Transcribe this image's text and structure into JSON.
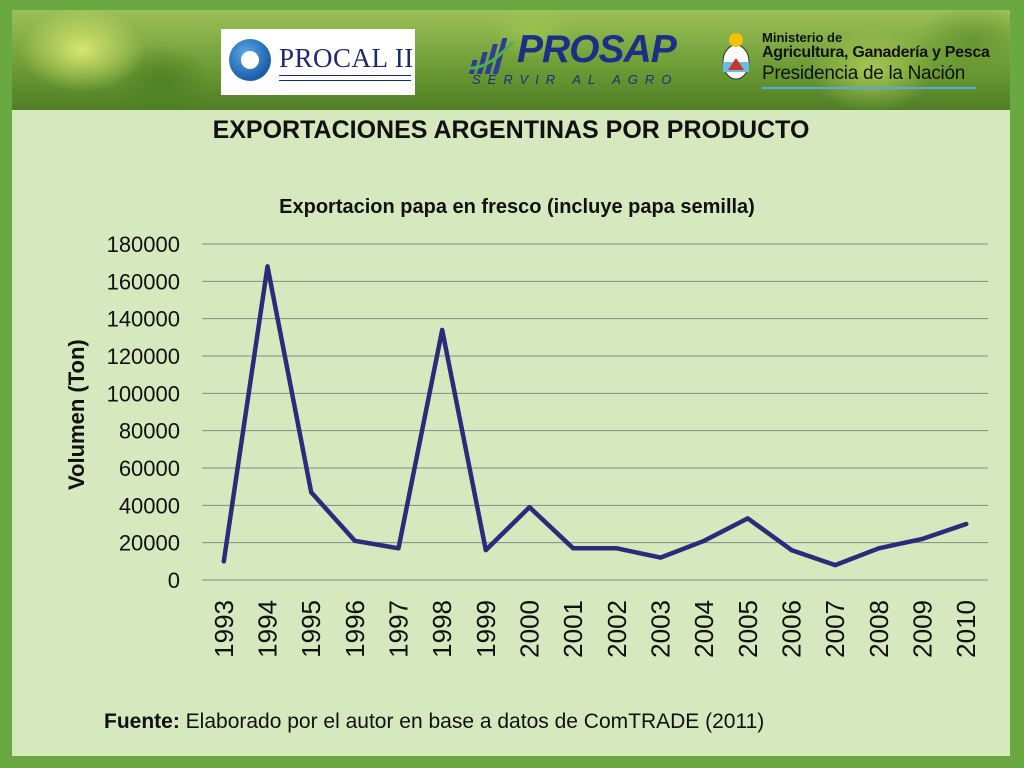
{
  "header": {
    "procal": {
      "title": "PROCAL II"
    },
    "prosap": {
      "title": "PROSAP",
      "subtitle": "SERVIR AL AGRO"
    },
    "ministerio": {
      "line1": "Ministerio de",
      "line2": "Agricultura, Ganadería y Pesca",
      "line3": "Presidencia de la Nación"
    }
  },
  "main_title": "EXPORTACIONES ARGENTINAS POR PRODUCTO",
  "source": {
    "label": "Fuente:",
    "text": " Elaborado por el autor en base a datos de ComTRADE (2011)"
  },
  "colors": {
    "line": "#2b2b7a",
    "grid": "#888888",
    "background": "#d6e8bd",
    "frame": "#6aa842"
  },
  "chart_data": {
    "type": "line",
    "title": "Exportacion papa en fresco (incluye papa semilla)",
    "xlabel": "",
    "ylabel": "Volumen (Ton)",
    "ylim": [
      0,
      180000
    ],
    "yticks": [
      "0",
      "20000",
      "40000",
      "60000",
      "80000",
      "100000",
      "120000",
      "140000",
      "160000",
      "180000"
    ],
    "grid": true,
    "legend": "none",
    "categories": [
      "1993",
      "1994",
      "1995",
      "1996",
      "1997",
      "1998",
      "1999",
      "2000",
      "2001",
      "2002",
      "2003",
      "2004",
      "2005",
      "2006",
      "2007",
      "2008",
      "2009",
      "2010"
    ],
    "series": [
      {
        "values": [
          10000,
          168000,
          47000,
          21000,
          17000,
          134000,
          16000,
          39000,
          17000,
          17000,
          12000,
          21000,
          33000,
          16000,
          8000,
          17000,
          22000,
          30000
        ]
      }
    ]
  }
}
